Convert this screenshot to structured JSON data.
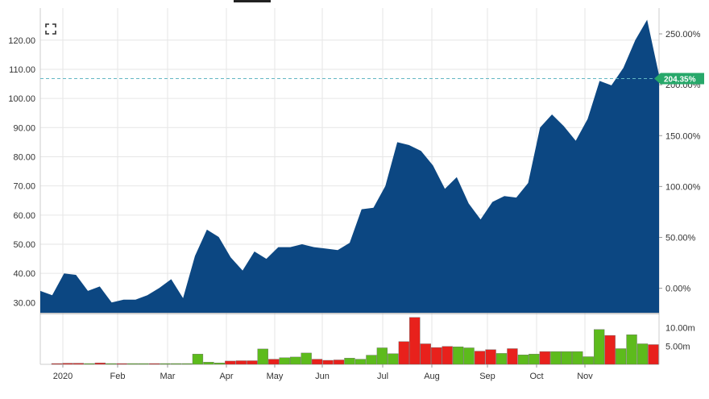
{
  "chart_data": {
    "type": "area",
    "x_labels": [
      "2020",
      "Feb",
      "Mar",
      "Apr",
      "May",
      "Jun",
      "Jul",
      "Aug",
      "Sep",
      "Oct",
      "Nov"
    ],
    "price": [
      34,
      32.5,
      40,
      39.5,
      34,
      35.5,
      30,
      31,
      31,
      32.5,
      35,
      38,
      31.5,
      46,
      55,
      52.5,
      45.5,
      41,
      47.5,
      45,
      49,
      49,
      50,
      49,
      48.5,
      48,
      50.5,
      62,
      62.5,
      70,
      85,
      84,
      82,
      77,
      69,
      73,
      64,
      58.5,
      64.5,
      66.5,
      66,
      71,
      90,
      94.5,
      90.5,
      85.5,
      93,
      106,
      104.5,
      110.5,
      120,
      127,
      108
    ],
    "yticks_left": [
      "30.00",
      "40.00",
      "50.00",
      "60.00",
      "70.00",
      "80.00",
      "90.00",
      "100.00",
      "110.00",
      "120.00"
    ],
    "yticks_right": [
      "0.00%",
      "50.00%",
      "100.00%",
      "150.00%",
      "200.00%",
      "250.00%"
    ],
    "ylim": [
      26.5,
      131
    ],
    "current": {
      "price": 106.8,
      "label": "204.35%"
    },
    "volume": {
      "values": [
        0.15,
        0.3,
        0.3,
        0.1,
        0.4,
        0.1,
        0.1,
        0.1,
        0.1,
        0.1,
        0.2,
        0.2,
        0.1,
        2.8,
        0.6,
        0.4,
        0.9,
        1.0,
        1.0,
        4.2,
        1.4,
        1.8,
        2.0,
        3.1,
        1.4,
        1.1,
        1.2,
        1.7,
        1.4,
        2.5,
        4.5,
        2.9,
        6.2,
        12.8,
        5.6,
        4.6,
        4.9,
        4.8,
        4.5,
        3.6,
        4.0,
        3.0,
        4.3,
        2.6,
        2.8,
        3.5,
        3.5,
        3.5,
        3.5,
        2.1,
        9.5,
        7.9,
        4.3,
        8.1,
        5.6,
        5.4
      ],
      "up": [
        false,
        false,
        false,
        true,
        false,
        true,
        false,
        true,
        true,
        false,
        true,
        true,
        true,
        true,
        true,
        true,
        false,
        false,
        false,
        true,
        false,
        true,
        true,
        true,
        false,
        false,
        false,
        true,
        true,
        true,
        true,
        true,
        false,
        false,
        false,
        false,
        false,
        true,
        true,
        false,
        false,
        true,
        false,
        true,
        true,
        false,
        true,
        true,
        true,
        true,
        true,
        false,
        true,
        true,
        true,
        false
      ],
      "yticks": [
        "5.00m",
        "10.00m"
      ],
      "up_color": "#5dbb1c",
      "down_color": "#e8211c"
    },
    "colors": {
      "area": "#0c4782",
      "badge": "#27a86a",
      "dashed_line": "#64b8c4",
      "grid": "#e6e6e6"
    },
    "legend": "none",
    "grid": true
  },
  "toolbar": {
    "expand_icon": "expand-icon"
  }
}
